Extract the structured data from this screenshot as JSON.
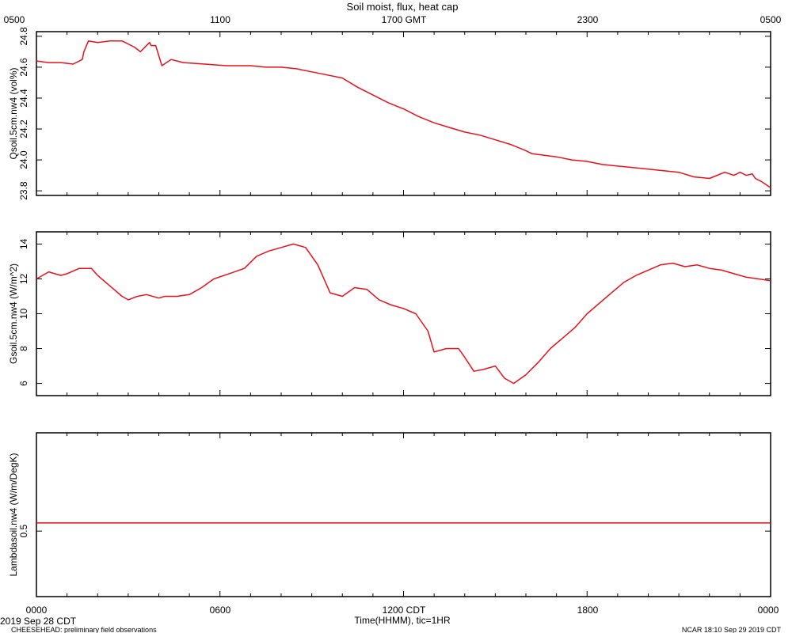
{
  "header": {
    "title": "Soil moist, flux, heat cap",
    "top_axis_labels": [
      "0500",
      "1100",
      "1700 GMT",
      "2300",
      "0500"
    ]
  },
  "footer": {
    "bottom_axis_labels": [
      "0000",
      "0600",
      "1200 CDT",
      "1800",
      "0000"
    ],
    "xlabel": "Time(HHMM), tic=1HR",
    "date_label": "2019 Sep 28 CDT",
    "project_label": "CHEESEHEAD: preliminary field observations",
    "ncar_label": "NCAR 18:10 Sep 29 2019 CDT"
  },
  "colors": {
    "line": "#e8101a",
    "axis": "#000000"
  },
  "chart_data": [
    {
      "type": "line",
      "ylabel": "Qsoil.5cm.nw4 (vol%)",
      "ylim": [
        23.77,
        24.83
      ],
      "yticks": [
        23.8,
        24.0,
        24.2,
        24.4,
        24.6,
        24.8
      ],
      "ytick_labels": [
        "23.8",
        "24.0",
        "24.2",
        "24.4",
        "24.6",
        "24.8"
      ],
      "xlim": [
        0,
        24
      ],
      "x": [
        0,
        0.4,
        0.8,
        1.2,
        1.5,
        1.55,
        1.7,
        2.0,
        2.4,
        2.8,
        3.2,
        3.4,
        3.7,
        3.75,
        3.9,
        4.1,
        4.4,
        4.8,
        5.5,
        6.2,
        7.0,
        7.5,
        8.0,
        8.5,
        9.0,
        9.5,
        10.0,
        10.5,
        11.0,
        11.5,
        12.0,
        12.5,
        13.0,
        13.5,
        14.0,
        14.5,
        15.0,
        15.5,
        16.0,
        16.2,
        16.6,
        17.0,
        17.5,
        18.0,
        18.5,
        19.0,
        19.5,
        20.0,
        20.5,
        21.0,
        21.5,
        22.0,
        22.5,
        22.8,
        23.0,
        23.2,
        23.4,
        23.5,
        23.7,
        24.0
      ],
      "values": [
        24.64,
        24.63,
        24.63,
        24.62,
        24.65,
        24.7,
        24.77,
        24.76,
        24.77,
        24.77,
        24.73,
        24.7,
        24.76,
        24.74,
        24.74,
        24.61,
        24.65,
        24.63,
        24.62,
        24.61,
        24.61,
        24.6,
        24.6,
        24.59,
        24.57,
        24.55,
        24.53,
        24.47,
        24.42,
        24.37,
        24.33,
        24.28,
        24.24,
        24.21,
        24.18,
        24.16,
        24.13,
        24.1,
        24.06,
        24.04,
        24.03,
        24.02,
        24.0,
        23.99,
        23.97,
        23.96,
        23.95,
        23.94,
        23.93,
        23.92,
        23.89,
        23.88,
        23.92,
        23.9,
        23.92,
        23.9,
        23.91,
        23.88,
        23.86,
        23.82
      ]
    },
    {
      "type": "line",
      "ylabel": "Gsoil.5cm.nw4 (W/m^2)",
      "ylim": [
        5.3,
        14.7
      ],
      "yticks": [
        6,
        8,
        10,
        12,
        14
      ],
      "ytick_labels": [
        "6",
        "8",
        "10",
        "12",
        "14"
      ],
      "xlim": [
        0,
        24
      ],
      "x": [
        0,
        0.4,
        0.8,
        1.0,
        1.4,
        1.8,
        2.0,
        2.4,
        2.8,
        3.0,
        3.3,
        3.6,
        4.0,
        4.2,
        4.6,
        5.0,
        5.4,
        5.8,
        6.3,
        6.8,
        7.2,
        7.6,
        8.0,
        8.4,
        8.8,
        9.2,
        9.6,
        10.0,
        10.4,
        10.8,
        11.2,
        11.6,
        12.0,
        12.4,
        12.8,
        13.0,
        13.4,
        13.8,
        14.0,
        14.3,
        14.6,
        15.0,
        15.3,
        15.6,
        16.0,
        16.4,
        16.8,
        17.2,
        17.6,
        18.0,
        18.4,
        18.8,
        19.2,
        19.6,
        20.0,
        20.4,
        20.8,
        21.2,
        21.6,
        22.0,
        22.4,
        22.8,
        23.2,
        23.6,
        24.0
      ],
      "values": [
        12.0,
        12.4,
        12.2,
        12.3,
        12.6,
        12.6,
        12.2,
        11.6,
        11.0,
        10.8,
        11.0,
        11.1,
        10.9,
        11.0,
        11.0,
        11.1,
        11.5,
        12.0,
        12.3,
        12.6,
        13.3,
        13.6,
        13.8,
        14.0,
        13.8,
        12.8,
        11.2,
        11.0,
        11.5,
        11.4,
        10.8,
        10.5,
        10.3,
        10.0,
        9.0,
        7.8,
        8.0,
        8.0,
        7.5,
        6.7,
        6.8,
        7.0,
        6.3,
        6.0,
        6.5,
        7.2,
        8.0,
        8.6,
        9.2,
        10.0,
        10.6,
        11.2,
        11.8,
        12.2,
        12.5,
        12.8,
        12.9,
        12.7,
        12.8,
        12.6,
        12.5,
        12.3,
        12.1,
        12.0,
        11.9
      ]
    },
    {
      "type": "line",
      "ylabel": "Lambdasoil.nw4 (W/m/DegK)",
      "ylim": [
        0.3,
        0.8
      ],
      "yticks": [
        0.5
      ],
      "ytick_labels": [
        "0.5"
      ],
      "xlim": [
        0,
        24
      ],
      "x": [
        0,
        24
      ],
      "values": [
        0.525,
        0.525
      ]
    }
  ]
}
